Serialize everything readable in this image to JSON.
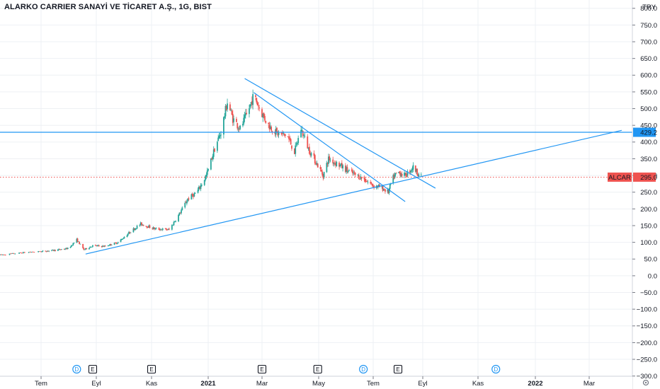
{
  "chart_title": "ALARKO CARRIER SANAYİ VE TİCARET A.Ş., 1G, BIST",
  "currency": "TRY",
  "colors": {
    "up": "#26a69a",
    "down": "#ef5350",
    "line": "#2196f3",
    "axis": "#131722",
    "grid": "#eef0f4",
    "badge_blue": "#2196f3",
    "badge_red": "#ef5350"
  },
  "chart_data": {
    "type": "candlestick",
    "symbol": "ALCAR",
    "title": "ALARKO CARRIER SANAYİ VE TİCARET A.Ş., 1G, BIST",
    "ylabel": "TRY",
    "ylim": [
      -310,
      852
    ],
    "y_ticks": [
      850,
      800,
      750,
      700,
      650,
      600,
      550,
      500,
      450,
      400,
      350,
      300,
      250,
      200,
      150,
      100,
      50,
      0,
      -50,
      -100,
      -150,
      -200,
      -250,
      -300
    ],
    "y_tick_labels": [
      "850.0",
      "800.0",
      "750.0",
      "700.0",
      "650.0",
      "600.0",
      "550.0",
      "500.0",
      "450.0",
      "400.0",
      "350.0",
      "300.0",
      "250.0",
      "200.0",
      "150.0",
      "100.0",
      "50.0",
      "0.0",
      "−50.0",
      "−100.0",
      "−150.0",
      "−200.0",
      "−250.0",
      "−300.0"
    ],
    "x_tick_labels": [
      "Tem",
      "Eyl",
      "Kas",
      "2021",
      "Mar",
      "May",
      "Tem",
      "Eyl",
      "Kas",
      "2022",
      "Mar"
    ],
    "x_tick_dates": [
      "2020-07-01",
      "2020-09-01",
      "2020-11-01",
      "2021-01-01",
      "2021-03-01",
      "2021-05-01",
      "2021-07-01",
      "2021-09-01",
      "2021-11-01",
      "2022-01-01",
      "2022-03-01"
    ],
    "price_path": [
      [
        "2020-06-01",
        62
      ],
      [
        "2020-06-20",
        70
      ],
      [
        "2020-07-15",
        76
      ],
      [
        "2020-08-01",
        82
      ],
      [
        "2020-08-10",
        108
      ],
      [
        "2020-08-18",
        78
      ],
      [
        "2020-08-28",
        90
      ],
      [
        "2020-09-10",
        88
      ],
      [
        "2020-09-25",
        100
      ],
      [
        "2020-10-10",
        135
      ],
      [
        "2020-10-20",
        155
      ],
      [
        "2020-11-05",
        140
      ],
      [
        "2020-11-20",
        138
      ],
      [
        "2020-12-01",
        185
      ],
      [
        "2020-12-10",
        230
      ],
      [
        "2020-12-20",
        250
      ],
      [
        "2020-12-30",
        300
      ],
      [
        "2021-01-08",
        380
      ],
      [
        "2021-01-15",
        430
      ],
      [
        "2021-01-22",
        520
      ],
      [
        "2021-01-28",
        470
      ],
      [
        "2021-02-05",
        440
      ],
      [
        "2021-02-12",
        480
      ],
      [
        "2021-02-20",
        540
      ],
      [
        "2021-02-28",
        490
      ],
      [
        "2021-03-08",
        450
      ],
      [
        "2021-03-18",
        425
      ],
      [
        "2021-03-28",
        420
      ],
      [
        "2021-04-05",
        370
      ],
      [
        "2021-04-12",
        440
      ],
      [
        "2021-04-20",
        380
      ],
      [
        "2021-04-30",
        330
      ],
      [
        "2021-05-06",
        300
      ],
      [
        "2021-05-12",
        350
      ],
      [
        "2021-05-25",
        330
      ],
      [
        "2021-06-05",
        310
      ],
      [
        "2021-06-20",
        290
      ],
      [
        "2021-07-01",
        270
      ],
      [
        "2021-07-10",
        265
      ],
      [
        "2021-07-20",
        250
      ],
      [
        "2021-07-25",
        290
      ],
      [
        "2021-08-01",
        310
      ],
      [
        "2021-08-10",
        300
      ],
      [
        "2021-08-20",
        325
      ],
      [
        "2021-08-30",
        295
      ]
    ],
    "last_price": 295.0,
    "last_price_label": "295.0",
    "symbol_label": "ALCAR",
    "horizontal_level": 429.2,
    "horizontal_level_label": "429.2",
    "trendlines": [
      {
        "from": [
          "2020-08-20",
          65
        ],
        "to": [
          "2022-04-05",
          435
        ]
      },
      {
        "from": [
          "2021-02-10",
          590
        ],
        "to": [
          "2021-09-15",
          262
        ]
      },
      {
        "from": [
          "2021-02-20",
          548
        ],
        "to": [
          "2021-08-10",
          222
        ]
      }
    ],
    "events": [
      {
        "type": "D",
        "date": "2020-08-10"
      },
      {
        "type": "E",
        "date": "2020-08-28"
      },
      {
        "type": "E",
        "date": "2020-11-01"
      },
      {
        "type": "E",
        "date": "2021-03-01"
      },
      {
        "type": "E",
        "date": "2021-04-30"
      },
      {
        "type": "D",
        "date": "2021-06-20"
      },
      {
        "type": "E",
        "date": "2021-08-01"
      },
      {
        "type": "D",
        "date": "2021-11-20"
      }
    ]
  }
}
